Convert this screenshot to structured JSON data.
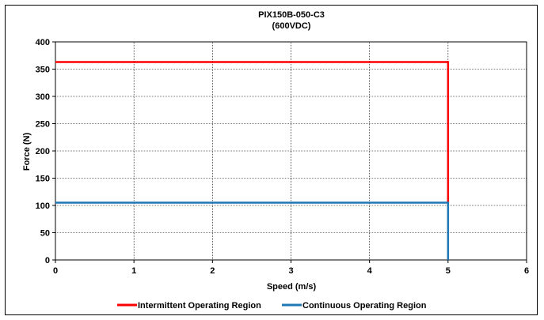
{
  "chart_data": {
    "type": "line",
    "title": "PIX150B-050-C3",
    "subtitle": "(600VDC)",
    "xlabel": "Speed (m/s)",
    "ylabel": "Force (N)",
    "xlim": [
      0,
      6
    ],
    "ylim": [
      0,
      400
    ],
    "xticks": [
      0,
      1,
      2,
      3,
      4,
      5,
      6
    ],
    "yticks": [
      0,
      50,
      100,
      150,
      200,
      250,
      300,
      350,
      400
    ],
    "grid": true,
    "legend_position": "bottom",
    "series": [
      {
        "name": "Intermittent Operating Region",
        "color": "#ff0000",
        "x": [
          0,
          5,
          5
        ],
        "y": [
          363,
          363,
          105
        ]
      },
      {
        "name": "Continuous Operating Region",
        "color": "#1f77b4",
        "x": [
          0,
          5,
          5
        ],
        "y": [
          105,
          105,
          0
        ]
      }
    ]
  }
}
